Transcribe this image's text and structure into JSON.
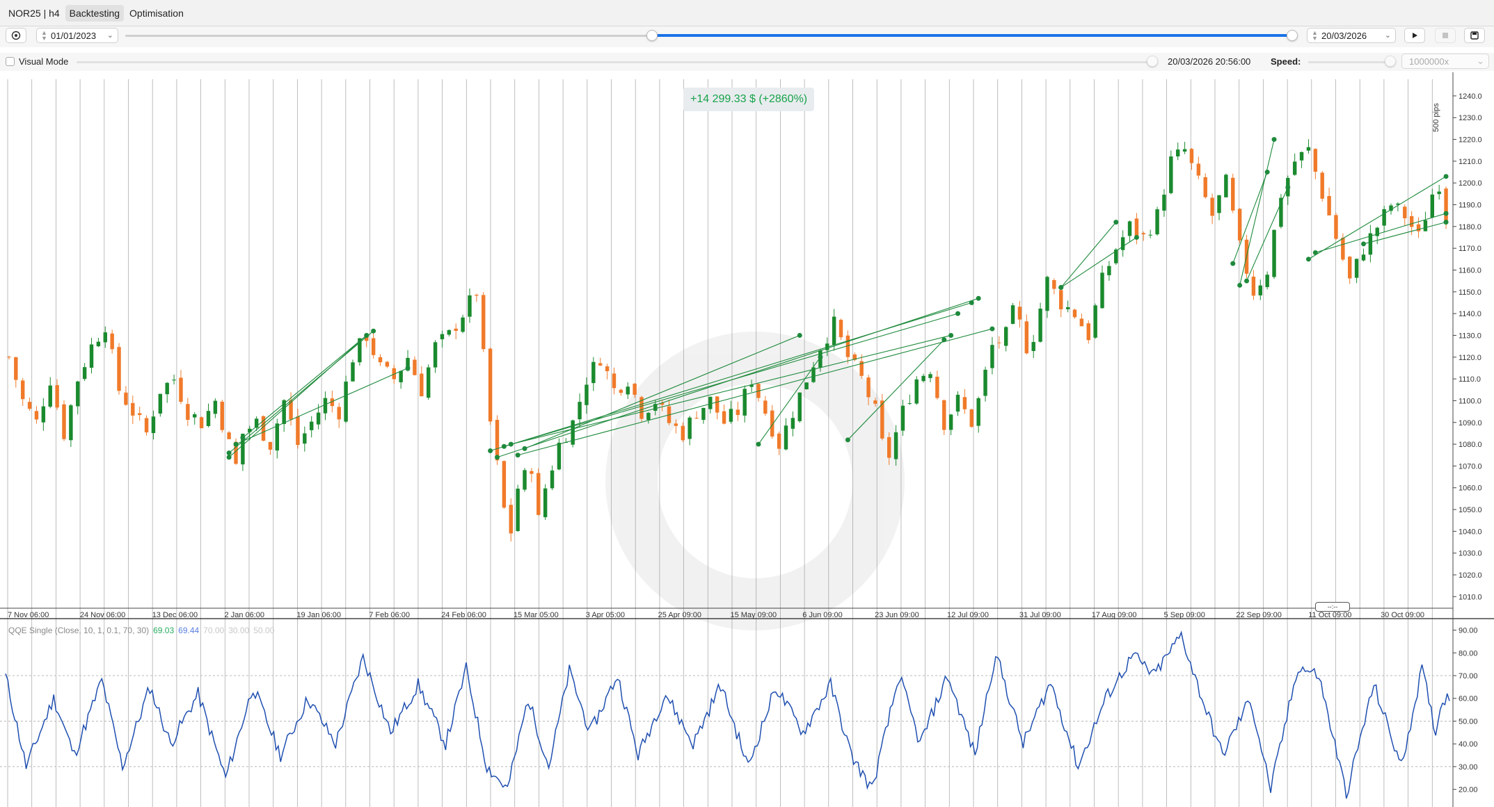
{
  "window": {
    "tabs": [
      {
        "label": "NOR25 | h4"
      },
      {
        "label": "Backtesting"
      },
      {
        "label": "Optimisation"
      }
    ]
  },
  "controls": {
    "start_date": "01/01/2023",
    "end_date": "20/03/2026",
    "range_start_fraction": 0.0,
    "range_fill_start_fraction": 0.45,
    "play_icon": "play-icon",
    "stop_icon": "stop-icon",
    "save_icon": "save-icon",
    "visual_mode_label": "Visual Mode",
    "visual_mode_checked": false,
    "current_time": "20/03/2026 20:56:00",
    "speed_label": "Speed:",
    "speed_value": "1000000x"
  },
  "summary": {
    "pnl": "+14 299.33 $ (+2860%)"
  },
  "chart_data": [
    {
      "type": "candlestick",
      "symbol": "NOR25",
      "timeframe": "h4",
      "x_tick_labels": [
        "7 Nov 06:00",
        "24 Nov 06:00",
        "13 Dec 06:00",
        "2 Jan 06:00",
        "19 Jan 06:00",
        "7 Feb 06:00",
        "24 Feb 06:00",
        "15 Mar 05:00",
        "3 Apr 05:00",
        "25 Apr 09:00",
        "15 May 09:00",
        "6 Jun 09:00",
        "23 Jun 09:00",
        "12 Jul 09:00",
        "31 Jul 09:00",
        "17 Aug 09:00",
        "5 Sep 09:00",
        "22 Sep 09:00",
        "11 Oct 09:00",
        "30 Oct 09:00"
      ],
      "y_tick_labels": [
        "1010.0",
        "1020.0",
        "1030.0",
        "1040.0",
        "1050.0",
        "1060.0",
        "1070.0",
        "1080.0",
        "1090.0",
        "1100.0",
        "1110.0",
        "1120.0",
        "1130.0",
        "1140.0",
        "1150.0",
        "1160.0",
        "1170.0",
        "1180.0",
        "1190.0",
        "1200.0",
        "1210.0",
        "1220.0",
        "1230.0",
        "1240.0"
      ],
      "ylim": [
        1005,
        1247
      ],
      "scale_label": "500 pips",
      "close_path": [
        [
          0,
          1120
        ],
        [
          2,
          1100
        ],
        [
          4,
          1090
        ],
        [
          6,
          1110
        ],
        [
          8,
          1085
        ],
        [
          10,
          1110
        ],
        [
          12,
          1125
        ],
        [
          14,
          1135
        ],
        [
          16,
          1105
        ],
        [
          18,
          1095
        ],
        [
          20,
          1085
        ],
        [
          22,
          1105
        ],
        [
          24,
          1110
        ],
        [
          26,
          1095
        ],
        [
          28,
          1090
        ],
        [
          30,
          1100
        ],
        [
          32,
          1080
        ],
        [
          33,
          1070
        ],
        [
          34,
          1085
        ],
        [
          36,
          1090
        ],
        [
          38,
          1080
        ],
        [
          40,
          1100
        ],
        [
          42,
          1080
        ],
        [
          44,
          1090
        ],
        [
          46,
          1100
        ],
        [
          48,
          1095
        ],
        [
          50,
          1120
        ],
        [
          52,
          1130
        ],
        [
          54,
          1115
        ],
        [
          56,
          1110
        ],
        [
          58,
          1120
        ],
        [
          60,
          1105
        ],
        [
          62,
          1125
        ],
        [
          64,
          1130
        ],
        [
          66,
          1140
        ],
        [
          68,
          1150
        ],
        [
          69,
          1120
        ],
        [
          70,
          1090
        ],
        [
          71,
          1070
        ],
        [
          72,
          1050
        ],
        [
          73,
          1040
        ],
        [
          74,
          1060
        ],
        [
          76,
          1070
        ],
        [
          77,
          1045
        ],
        [
          78,
          1060
        ],
        [
          80,
          1080
        ],
        [
          82,
          1090
        ],
        [
          84,
          1110
        ],
        [
          86,
          1120
        ],
        [
          88,
          1105
        ],
        [
          90,
          1110
        ],
        [
          92,
          1095
        ],
        [
          94,
          1100
        ],
        [
          96,
          1090
        ],
        [
          98,
          1085
        ],
        [
          100,
          1095
        ],
        [
          102,
          1100
        ],
        [
          104,
          1090
        ],
        [
          106,
          1095
        ],
        [
          108,
          1110
        ],
        [
          110,
          1095
        ],
        [
          112,
          1080
        ],
        [
          114,
          1095
        ],
        [
          116,
          1110
        ],
        [
          118,
          1125
        ],
        [
          120,
          1135
        ],
        [
          122,
          1120
        ],
        [
          124,
          1110
        ],
        [
          126,
          1095
        ],
        [
          127,
          1080
        ],
        [
          128,
          1075
        ],
        [
          130,
          1095
        ],
        [
          132,
          1110
        ],
        [
          134,
          1115
        ],
        [
          136,
          1090
        ],
        [
          138,
          1100
        ],
        [
          140,
          1090
        ],
        [
          141,
          1100
        ],
        [
          143,
          1125
        ],
        [
          145,
          1130
        ],
        [
          146,
          1140
        ],
        [
          147,
          1135
        ],
        [
          148,
          1125
        ],
        [
          149,
          1130
        ],
        [
          151,
          1155
        ],
        [
          153,
          1145
        ],
        [
          155,
          1140
        ],
        [
          157,
          1130
        ],
        [
          159,
          1155
        ],
        [
          161,
          1170
        ],
        [
          163,
          1180
        ],
        [
          165,
          1175
        ],
        [
          167,
          1185
        ],
        [
          169,
          1210
        ],
        [
          171,
          1215
        ],
        [
          173,
          1200
        ],
        [
          175,
          1185
        ],
        [
          177,
          1200
        ],
        [
          179,
          1170
        ],
        [
          181,
          1150
        ],
        [
          183,
          1160
        ],
        [
          185,
          1195
        ],
        [
          187,
          1210
        ],
        [
          189,
          1215
        ],
        [
          191,
          1195
        ],
        [
          193,
          1175
        ],
        [
          195,
          1155
        ],
        [
          197,
          1170
        ],
        [
          199,
          1180
        ],
        [
          201,
          1190
        ],
        [
          203,
          1185
        ],
        [
          205,
          1175
        ],
        [
          207,
          1195
        ],
        [
          208,
          1200
        ],
        [
          209,
          1185
        ]
      ],
      "trades": [
        {
          "x1": 32,
          "y1": 1074,
          "x2": 52,
          "y2": 1130
        },
        {
          "x1": 32,
          "y1": 1076,
          "x2": 53,
          "y2": 1132
        },
        {
          "x1": 33,
          "y1": 1080,
          "x2": 58,
          "y2": 1115
        },
        {
          "x1": 34,
          "y1": 1083,
          "x2": 52,
          "y2": 1130
        },
        {
          "x1": 70,
          "y1": 1077,
          "x2": 140,
          "y2": 1145
        },
        {
          "x1": 71,
          "y1": 1074,
          "x2": 141,
          "y2": 1147
        },
        {
          "x1": 72,
          "y1": 1079,
          "x2": 138,
          "y2": 1140
        },
        {
          "x1": 73,
          "y1": 1080,
          "x2": 137,
          "y2": 1130
        },
        {
          "x1": 74,
          "y1": 1075,
          "x2": 143,
          "y2": 1133
        },
        {
          "x1": 75,
          "y1": 1078,
          "x2": 115,
          "y2": 1130
        },
        {
          "x1": 109,
          "y1": 1080,
          "x2": 118,
          "y2": 1120
        },
        {
          "x1": 122,
          "y1": 1082,
          "x2": 136,
          "y2": 1128
        },
        {
          "x1": 153,
          "y1": 1152,
          "x2": 161,
          "y2": 1182
        },
        {
          "x1": 153,
          "y1": 1152,
          "x2": 164,
          "y2": 1175
        },
        {
          "x1": 178,
          "y1": 1163,
          "x2": 183,
          "y2": 1205
        },
        {
          "x1": 179,
          "y1": 1153,
          "x2": 184,
          "y2": 1220
        },
        {
          "x1": 180,
          "y1": 1155,
          "x2": 186,
          "y2": 1198
        },
        {
          "x1": 189,
          "y1": 1165,
          "x2": 209,
          "y2": 1203
        },
        {
          "x1": 190,
          "y1": 1168,
          "x2": 209,
          "y2": 1186
        },
        {
          "x1": 197,
          "y1": 1172,
          "x2": 209,
          "y2": 1182
        }
      ]
    },
    {
      "type": "line",
      "indicator_label": "QQE Single (Close, 10, 1, 0.1, 70, 30)",
      "legend_values": [
        {
          "text": "69.03",
          "color": "#27ae60"
        },
        {
          "text": "69.44",
          "color": "#5b7fe0"
        },
        {
          "text": "70.00",
          "color": "#c8c8c8"
        },
        {
          "text": "30.00",
          "color": "#c8c8c8"
        },
        {
          "text": "50.00",
          "color": "#c8c8c8"
        }
      ],
      "y_tick_labels": [
        "20.00",
        "30.00",
        "40.00",
        "50.00",
        "60.00",
        "70.00",
        "80.00",
        "90.00"
      ],
      "ylim": [
        15,
        92
      ],
      "levels": [
        70,
        50,
        30
      ],
      "line_color": "#1f4fb0",
      "pivots": [
        [
          0,
          70
        ],
        [
          3,
          30
        ],
        [
          7,
          60
        ],
        [
          10,
          35
        ],
        [
          14,
          68
        ],
        [
          17,
          30
        ],
        [
          21,
          65
        ],
        [
          24,
          40
        ],
        [
          28,
          62
        ],
        [
          32,
          25
        ],
        [
          36,
          65
        ],
        [
          40,
          35
        ],
        [
          44,
          60
        ],
        [
          48,
          40
        ],
        [
          52,
          78
        ],
        [
          56,
          45
        ],
        [
          60,
          66
        ],
        [
          64,
          40
        ],
        [
          67,
          73
        ],
        [
          70,
          30
        ],
        [
          73,
          20
        ],
        [
          76,
          60
        ],
        [
          79,
          30
        ],
        [
          82,
          72
        ],
        [
          85,
          45
        ],
        [
          89,
          70
        ],
        [
          92,
          35
        ],
        [
          96,
          62
        ],
        [
          100,
          40
        ],
        [
          104,
          66
        ],
        [
          108,
          30
        ],
        [
          112,
          65
        ],
        [
          116,
          45
        ],
        [
          120,
          66
        ],
        [
          123,
          35
        ],
        [
          126,
          20
        ],
        [
          130,
          70
        ],
        [
          133,
          40
        ],
        [
          137,
          70
        ],
        [
          141,
          35
        ],
        [
          144,
          80
        ],
        [
          148,
          40
        ],
        [
          152,
          67
        ],
        [
          156,
          30
        ],
        [
          160,
          60
        ],
        [
          164,
          79
        ],
        [
          167,
          70
        ],
        [
          171,
          88
        ],
        [
          174,
          60
        ],
        [
          177,
          35
        ],
        [
          181,
          60
        ],
        [
          184,
          20
        ],
        [
          188,
          74
        ],
        [
          191,
          70
        ],
        [
          195,
          18
        ],
        [
          199,
          66
        ],
        [
          203,
          30
        ],
        [
          206,
          73
        ],
        [
          208,
          45
        ],
        [
          209,
          60
        ]
      ]
    }
  ]
}
